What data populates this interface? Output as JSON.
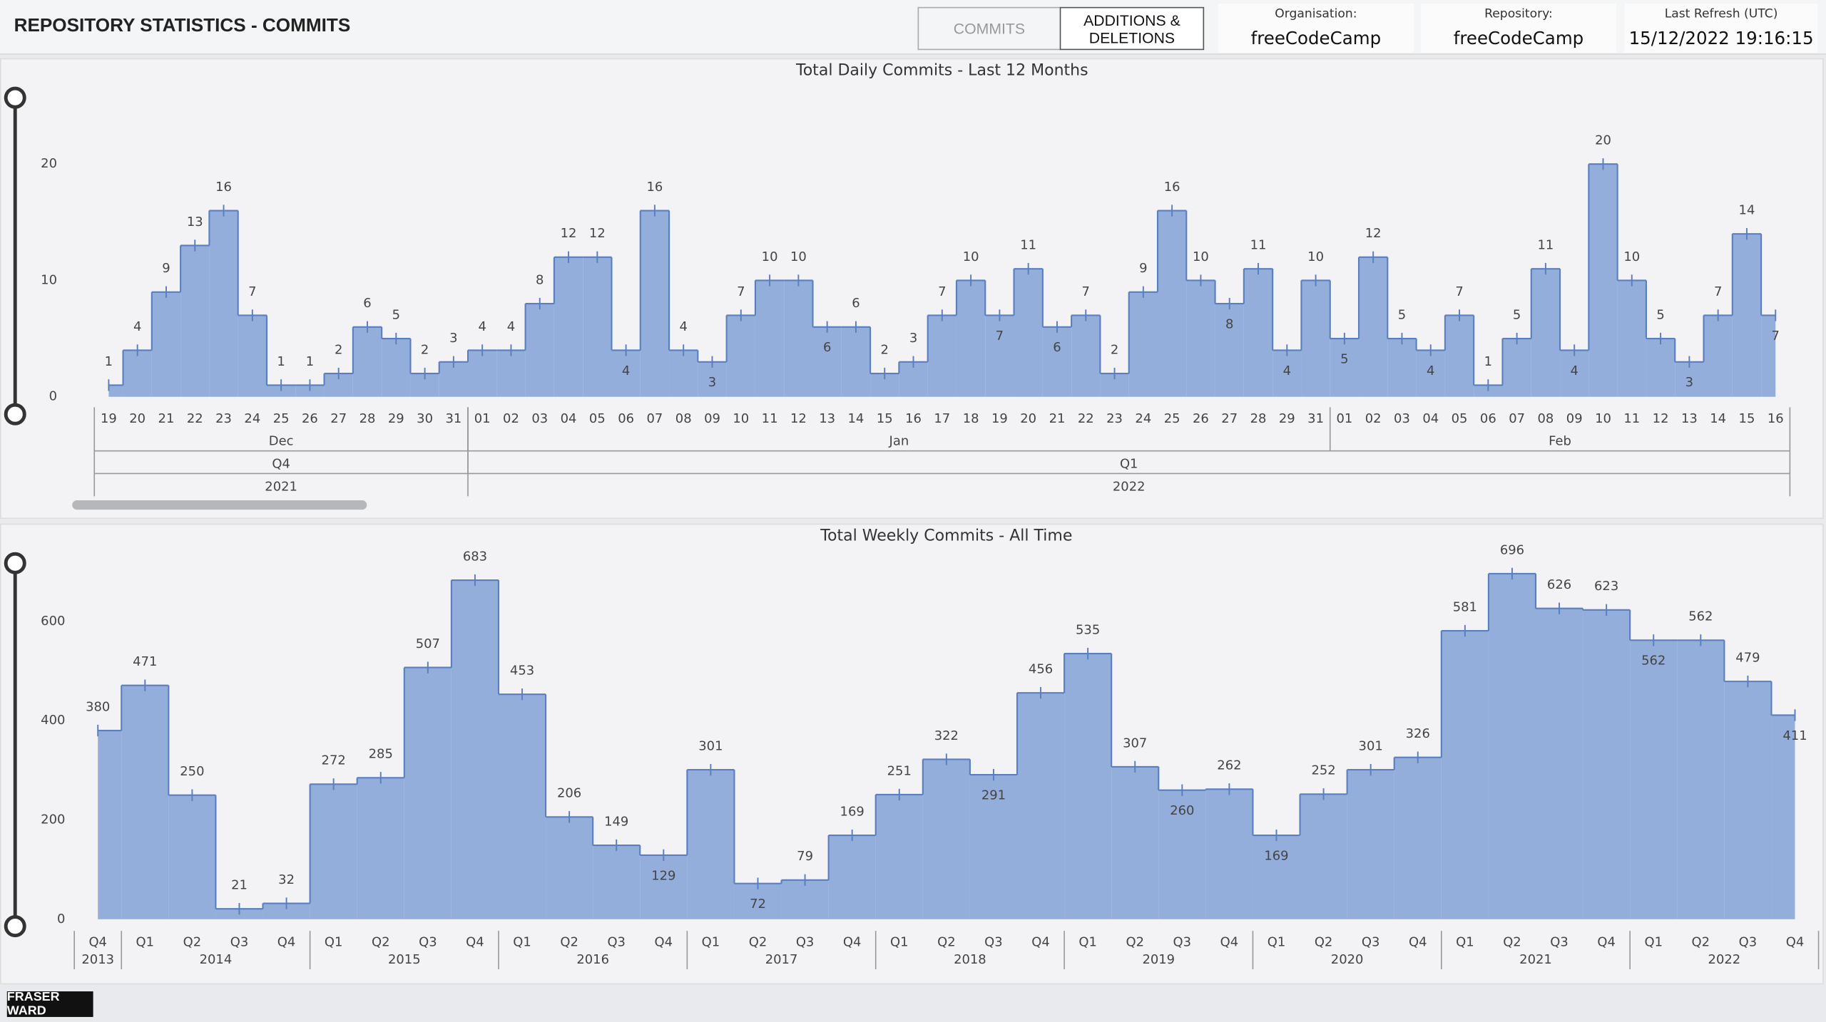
{
  "header": {
    "title": "REPOSITORY STATISTICS - COMMITS",
    "tabs": [
      "COMMITS",
      "ADDITIONS & DELETIONS"
    ],
    "cards": [
      {
        "label": "Organisation:",
        "value": "freeCodeCamp"
      },
      {
        "label": "Repository:",
        "value": "freeCodeCamp"
      },
      {
        "label": "Last Refresh (UTC)",
        "value": "15/12/2022 19:16:15"
      }
    ]
  },
  "footer": {
    "logo": "FRASER WARD"
  },
  "chart_data": [
    {
      "type": "step",
      "title": "Total Daily Commits - Last 12 Months",
      "color": "#93aedb",
      "line_color": "#5a7fc0",
      "categories": [
        "19",
        "20",
        "21",
        "22",
        "23",
        "24",
        "25",
        "26",
        "27",
        "28",
        "29",
        "30",
        "31",
        "01",
        "02",
        "03",
        "04",
        "05",
        "06",
        "07",
        "08",
        "09",
        "10",
        "11",
        "12",
        "13",
        "14",
        "15",
        "16",
        "17",
        "18",
        "19",
        "20",
        "21",
        "22",
        "23",
        "24",
        "25",
        "26",
        "27",
        "28",
        "29",
        "31",
        "01",
        "02",
        "03",
        "04",
        "05",
        "06",
        "07",
        "08",
        "09",
        "10",
        "11",
        "12",
        "13",
        "14",
        "15",
        "16"
      ],
      "values": [
        1,
        4,
        9,
        13,
        16,
        7,
        1,
        1,
        2,
        6,
        5,
        2,
        3,
        4,
        4,
        8,
        12,
        12,
        4,
        16,
        4,
        3,
        7,
        10,
        10,
        6,
        6,
        2,
        3,
        7,
        10,
        7,
        11,
        6,
        7,
        2,
        9,
        16,
        10,
        8,
        11,
        4,
        10,
        5,
        12,
        5,
        4,
        7,
        1,
        5,
        11,
        4,
        20,
        10,
        5,
        3,
        7,
        14,
        7
      ],
      "months": [
        "Dec",
        "Jan",
        "Feb"
      ],
      "quarters": [
        "Q4",
        "Q1"
      ],
      "years": [
        "2021",
        "2022"
      ],
      "ylim": [
        0,
        27
      ],
      "yticks": [
        0,
        10,
        20
      ]
    },
    {
      "type": "step",
      "title": "Total Weekly Commits - All Time",
      "color": "#93aedb",
      "line_color": "#5a7fc0",
      "categories": [
        "Q4",
        "Q1",
        "Q2",
        "Q3",
        "Q4",
        "Q1",
        "Q2",
        "Q3",
        "Q4",
        "Q1",
        "Q2",
        "Q3",
        "Q4",
        "Q1",
        "Q2",
        "Q3",
        "Q4",
        "Q1",
        "Q2",
        "Q3",
        "Q4",
        "Q1",
        "Q2",
        "Q3",
        "Q4",
        "Q1",
        "Q2",
        "Q3",
        "Q4",
        "Q1",
        "Q2",
        "Q3",
        "Q4",
        "Q1",
        "Q2",
        "Q3",
        "Q4"
      ],
      "values": [
        380,
        471,
        250,
        21,
        32,
        272,
        285,
        507,
        683,
        453,
        206,
        149,
        129,
        301,
        72,
        79,
        169,
        251,
        322,
        291,
        456,
        535,
        307,
        260,
        262,
        169,
        252,
        301,
        326,
        581,
        696,
        626,
        623,
        562,
        562,
        479,
        411
      ],
      "years": [
        "2013",
        "2014",
        "2015",
        "2016",
        "2017",
        "2018",
        "2019",
        "2020",
        "2021",
        "2022"
      ],
      "ylim": [
        0,
        750
      ],
      "yticks": [
        0,
        200,
        400,
        600
      ]
    }
  ]
}
